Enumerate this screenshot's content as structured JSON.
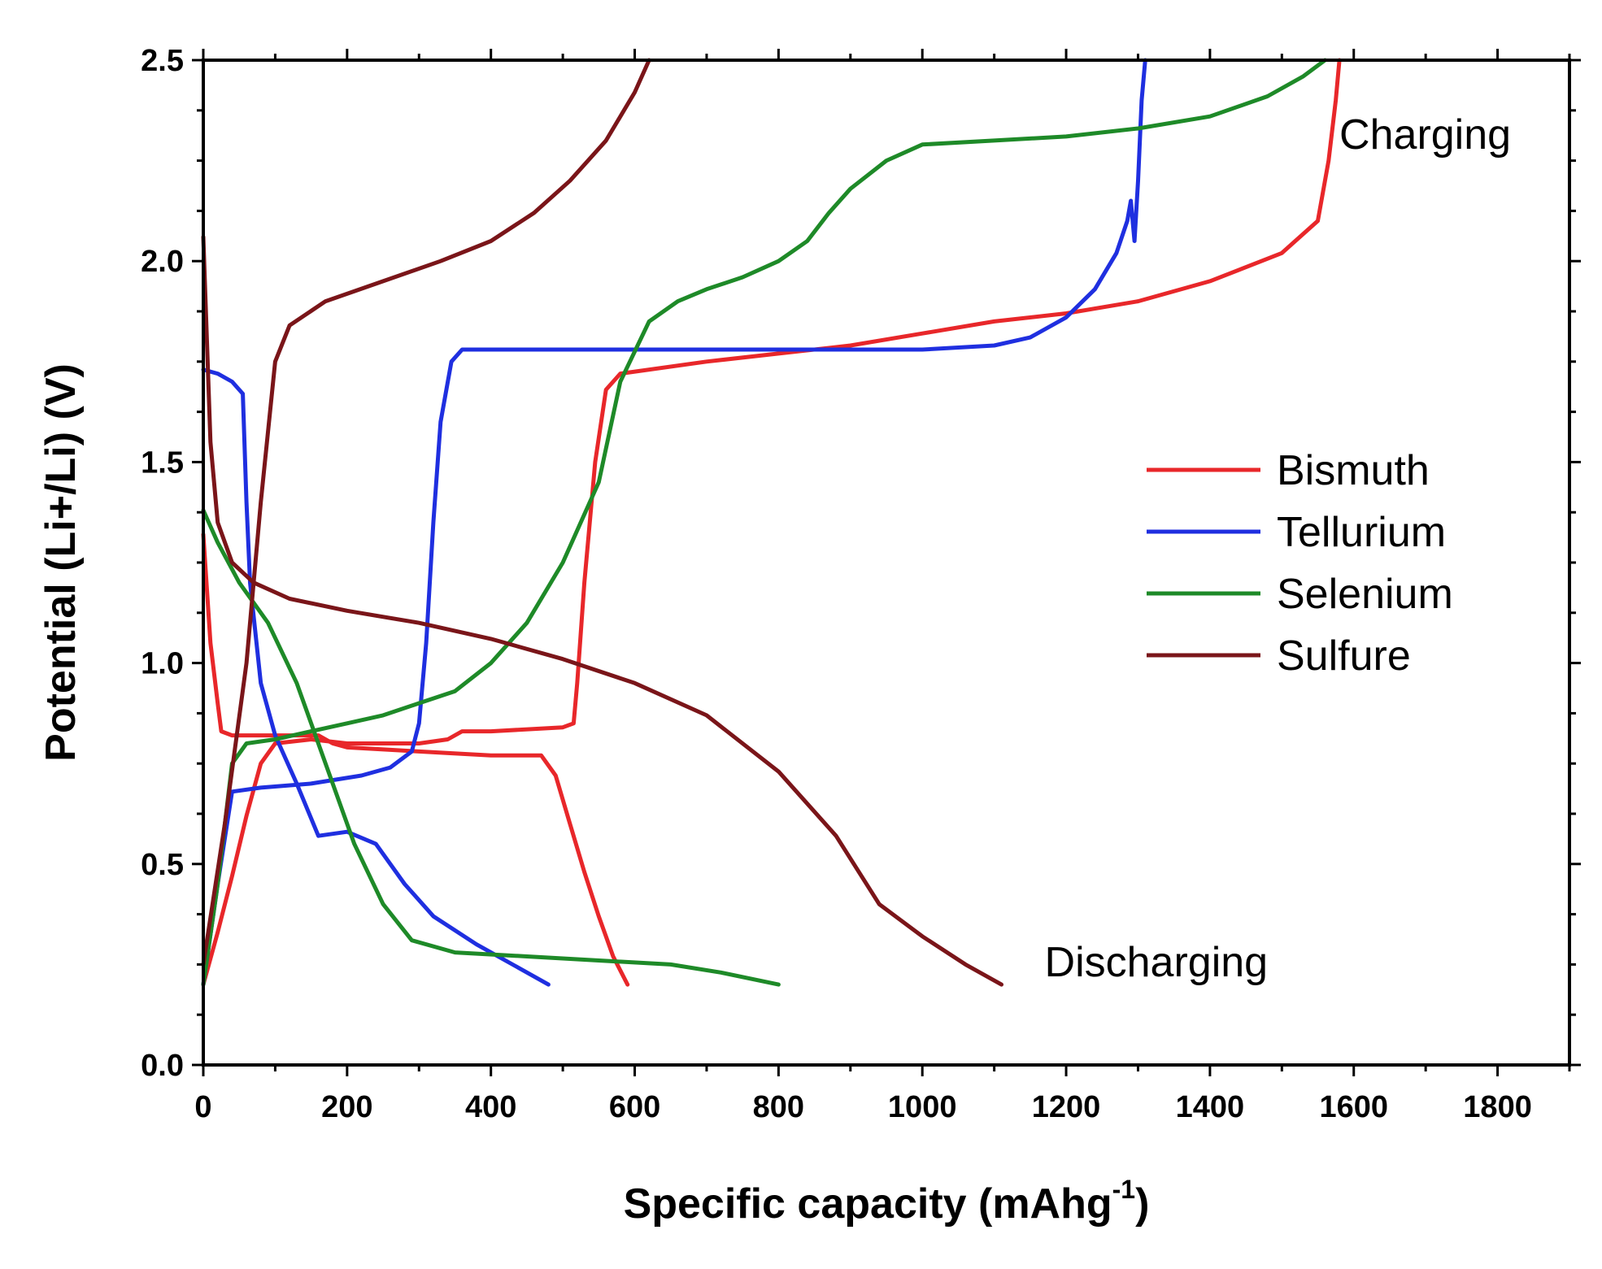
{
  "chart_data": {
    "type": "line",
    "title": "",
    "xlabel": "Specific capacity (mAhg",
    "xlabel_sup": "-1",
    "xlabel_close": ")",
    "ylabel": "Potential (Li+/Li) (V)",
    "xlim": [
      0,
      1900
    ],
    "ylim": [
      0,
      2.5
    ],
    "x_ticks": [
      0,
      200,
      400,
      600,
      800,
      1000,
      1200,
      1400,
      1600,
      1800
    ],
    "x_tick_labels": [
      "0",
      "200",
      "400",
      "600",
      "800",
      "1000",
      "1200",
      "1400",
      "1600",
      "1800"
    ],
    "y_ticks": [
      0.0,
      0.5,
      1.0,
      1.5,
      2.0,
      2.5
    ],
    "y_tick_labels": [
      "0.0",
      "0.5",
      "1.0",
      "1.5",
      "2.0",
      "2.5"
    ],
    "grid": false,
    "legend_position": "center-right",
    "annotations": [
      {
        "text": "Charging",
        "x": 1580,
        "y": 2.28
      },
      {
        "text": "Discharging",
        "x": 1170,
        "y": 0.22
      }
    ],
    "series": [
      {
        "name": "Bismuth",
        "color": "#e8272a",
        "segments": [
          [
            [
              0,
              1.32
            ],
            [
              10,
              1.05
            ],
            [
              20,
              0.9
            ],
            [
              25,
              0.83
            ],
            [
              40,
              0.82
            ],
            [
              100,
              0.82
            ],
            [
              160,
              0.82
            ],
            [
              180,
              0.8
            ],
            [
              200,
              0.79
            ],
            [
              300,
              0.78
            ],
            [
              400,
              0.77
            ],
            [
              470,
              0.77
            ],
            [
              490,
              0.72
            ],
            [
              510,
              0.6
            ],
            [
              530,
              0.48
            ],
            [
              550,
              0.37
            ],
            [
              570,
              0.27
            ],
            [
              590,
              0.2
            ]
          ],
          [
            [
              0,
              0.2
            ],
            [
              20,
              0.33
            ],
            [
              40,
              0.47
            ],
            [
              60,
              0.62
            ],
            [
              80,
              0.75
            ],
            [
              100,
              0.8
            ],
            [
              150,
              0.81
            ],
            [
              200,
              0.8
            ],
            [
              300,
              0.8
            ],
            [
              340,
              0.81
            ],
            [
              360,
              0.83
            ],
            [
              400,
              0.83
            ],
            [
              500,
              0.84
            ],
            [
              515,
              0.85
            ],
            [
              520,
              0.95
            ],
            [
              530,
              1.2
            ],
            [
              545,
              1.5
            ],
            [
              560,
              1.68
            ],
            [
              580,
              1.72
            ],
            [
              700,
              1.75
            ],
            [
              800,
              1.77
            ],
            [
              900,
              1.79
            ],
            [
              1000,
              1.82
            ],
            [
              1100,
              1.85
            ],
            [
              1200,
              1.87
            ],
            [
              1300,
              1.9
            ],
            [
              1400,
              1.95
            ],
            [
              1500,
              2.02
            ],
            [
              1550,
              2.1
            ],
            [
              1565,
              2.25
            ],
            [
              1575,
              2.4
            ],
            [
              1580,
              2.5
            ]
          ]
        ]
      },
      {
        "name": "Tellurium",
        "color": "#1f2fe0",
        "segments": [
          [
            [
              0,
              1.73
            ],
            [
              20,
              1.72
            ],
            [
              40,
              1.7
            ],
            [
              55,
              1.67
            ],
            [
              60,
              1.4
            ],
            [
              65,
              1.2
            ],
            [
              80,
              0.95
            ],
            [
              100,
              0.82
            ],
            [
              130,
              0.7
            ],
            [
              160,
              0.57
            ],
            [
              200,
              0.58
            ],
            [
              240,
              0.55
            ],
            [
              280,
              0.45
            ],
            [
              320,
              0.37
            ],
            [
              380,
              0.3
            ],
            [
              440,
              0.24
            ],
            [
              480,
              0.2
            ]
          ],
          [
            [
              0,
              0.2
            ],
            [
              20,
              0.45
            ],
            [
              40,
              0.68
            ],
            [
              80,
              0.69
            ],
            [
              150,
              0.7
            ],
            [
              220,
              0.72
            ],
            [
              260,
              0.74
            ],
            [
              290,
              0.78
            ],
            [
              300,
              0.85
            ],
            [
              310,
              1.05
            ],
            [
              320,
              1.35
            ],
            [
              330,
              1.6
            ],
            [
              345,
              1.75
            ],
            [
              360,
              1.78
            ],
            [
              500,
              1.78
            ],
            [
              700,
              1.78
            ],
            [
              900,
              1.78
            ],
            [
              1000,
              1.78
            ],
            [
              1100,
              1.79
            ],
            [
              1150,
              1.81
            ],
            [
              1200,
              1.86
            ],
            [
              1240,
              1.93
            ],
            [
              1270,
              2.02
            ],
            [
              1285,
              2.1
            ],
            [
              1290,
              2.15
            ],
            [
              1295,
              2.05
            ],
            [
              1300,
              2.2
            ],
            [
              1305,
              2.4
            ],
            [
              1310,
              2.5
            ]
          ]
        ]
      },
      {
        "name": "Selenium",
        "color": "#1e8a28",
        "segments": [
          [
            [
              0,
              1.38
            ],
            [
              20,
              1.3
            ],
            [
              50,
              1.2
            ],
            [
              90,
              1.1
            ],
            [
              130,
              0.95
            ],
            [
              170,
              0.75
            ],
            [
              210,
              0.55
            ],
            [
              250,
              0.4
            ],
            [
              290,
              0.31
            ],
            [
              350,
              0.28
            ],
            [
              450,
              0.27
            ],
            [
              550,
              0.26
            ],
            [
              650,
              0.25
            ],
            [
              720,
              0.23
            ],
            [
              800,
              0.2
            ]
          ],
          [
            [
              0,
              0.2
            ],
            [
              20,
              0.45
            ],
            [
              40,
              0.75
            ],
            [
              60,
              0.8
            ],
            [
              100,
              0.81
            ],
            [
              150,
              0.83
            ],
            [
              200,
              0.85
            ],
            [
              250,
              0.87
            ],
            [
              300,
              0.9
            ],
            [
              350,
              0.93
            ],
            [
              400,
              1.0
            ],
            [
              450,
              1.1
            ],
            [
              500,
              1.25
            ],
            [
              550,
              1.45
            ],
            [
              580,
              1.7
            ],
            [
              620,
              1.85
            ],
            [
              660,
              1.9
            ],
            [
              700,
              1.93
            ],
            [
              750,
              1.96
            ],
            [
              800,
              2.0
            ],
            [
              840,
              2.05
            ],
            [
              870,
              2.12
            ],
            [
              900,
              2.18
            ],
            [
              950,
              2.25
            ],
            [
              1000,
              2.29
            ],
            [
              1100,
              2.3
            ],
            [
              1200,
              2.31
            ],
            [
              1300,
              2.33
            ],
            [
              1400,
              2.36
            ],
            [
              1480,
              2.41
            ],
            [
              1530,
              2.46
            ],
            [
              1560,
              2.5
            ]
          ]
        ]
      },
      {
        "name": "Sulfure",
        "color": "#7a1519",
        "segments": [
          [
            [
              0,
              2.06
            ],
            [
              10,
              1.55
            ],
            [
              20,
              1.35
            ],
            [
              40,
              1.25
            ],
            [
              70,
              1.2
            ],
            [
              120,
              1.16
            ],
            [
              200,
              1.13
            ],
            [
              300,
              1.1
            ],
            [
              400,
              1.06
            ],
            [
              500,
              1.01
            ],
            [
              600,
              0.95
            ],
            [
              700,
              0.87
            ],
            [
              800,
              0.73
            ],
            [
              880,
              0.57
            ],
            [
              940,
              0.4
            ],
            [
              1000,
              0.32
            ],
            [
              1060,
              0.25
            ],
            [
              1110,
              0.2
            ]
          ],
          [
            [
              0,
              0.25
            ],
            [
              30,
              0.6
            ],
            [
              60,
              1.0
            ],
            [
              80,
              1.4
            ],
            [
              100,
              1.75
            ],
            [
              120,
              1.84
            ],
            [
              170,
              1.9
            ],
            [
              250,
              1.95
            ],
            [
              330,
              2.0
            ],
            [
              400,
              2.05
            ],
            [
              460,
              2.12
            ],
            [
              510,
              2.2
            ],
            [
              560,
              2.3
            ],
            [
              600,
              2.42
            ],
            [
              620,
              2.5
            ]
          ]
        ]
      }
    ]
  }
}
